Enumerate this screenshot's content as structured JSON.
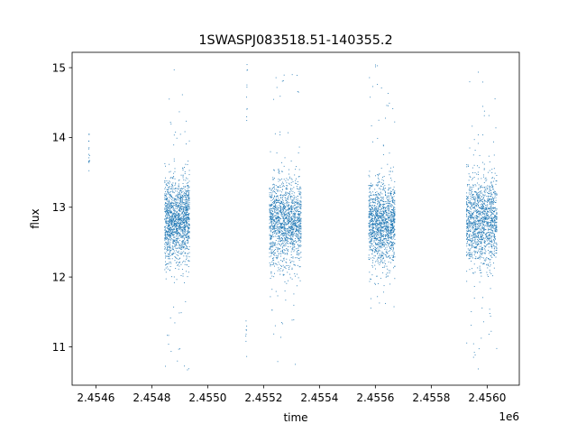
{
  "chart_data": {
    "type": "scatter",
    "title": "1SWASPJ083518.51-140355.2",
    "xlabel": "time",
    "ylabel": "flux",
    "x_offset_label": "1e6",
    "xlim": [
      2454515,
      2456115
    ],
    "ylim": [
      10.45,
      15.22
    ],
    "x_ticks": [
      2454600,
      2454800,
      2455000,
      2455200,
      2455400,
      2455600,
      2455800,
      2456000
    ],
    "x_tick_labels": [
      "2.4546",
      "2.4548",
      "2.4550",
      "2.4552",
      "2.4554",
      "2.4556",
      "2.4558",
      "2.4560"
    ],
    "y_ticks": [
      11,
      12,
      13,
      14,
      15
    ],
    "y_tick_labels": [
      "11",
      "12",
      "13",
      "14",
      "15"
    ],
    "grid": false,
    "color": "#1f77b4",
    "observing_seasons": [
      {
        "x_range": [
          2454573,
          2454576
        ],
        "y_center": 13.8,
        "y_spread": 0.35,
        "outlier_range": [
          13.3,
          14.25
        ],
        "n_points": 16
      },
      {
        "x_range": [
          2454845,
          2454935
        ],
        "y_center": 12.82,
        "y_spread": 0.55,
        "outlier_range": [
          10.65,
          15.0
        ],
        "n_points": 1500
      },
      {
        "x_range": [
          2455135,
          2455142
        ],
        "y_center": 14.6,
        "y_spread": 0.4,
        "outlier_range": [
          14.1,
          15.05
        ],
        "n_points": 10
      },
      {
        "x_range": [
          2455135,
          2455142
        ],
        "y_center": 11.2,
        "y_spread": 0.3,
        "outlier_range": [
          10.8,
          11.55
        ],
        "n_points": 8
      },
      {
        "x_range": [
          2455220,
          2455335
        ],
        "y_center": 12.8,
        "y_spread": 0.55,
        "outlier_range": [
          10.75,
          14.95
        ],
        "n_points": 1500
      },
      {
        "x_range": [
          2455575,
          2455670
        ],
        "y_center": 12.78,
        "y_spread": 0.52,
        "outlier_range": [
          11.3,
          15.05
        ],
        "n_points": 1400
      },
      {
        "x_range": [
          2455925,
          2456035
        ],
        "y_center": 12.8,
        "y_spread": 0.55,
        "outlier_range": [
          10.65,
          14.95
        ],
        "n_points": 1400
      }
    ]
  }
}
